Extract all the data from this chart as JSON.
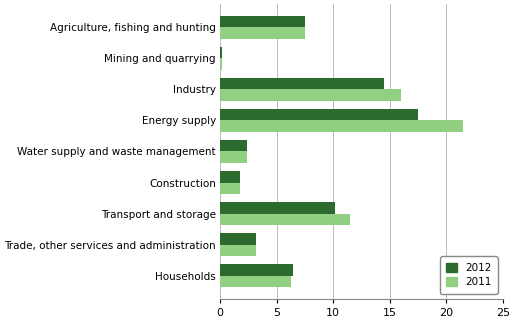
{
  "categories": [
    "Households",
    "Trade, other services and administration",
    "Transport and storage",
    "Construction",
    "Water supply and waste management",
    "Energy supply",
    "Industry",
    "Mining and quarrying",
    "Agriculture, fishing and hunting"
  ],
  "values_2012": [
    6.5,
    3.2,
    10.2,
    1.8,
    2.4,
    17.5,
    14.5,
    0.15,
    7.5
  ],
  "values_2011": [
    6.3,
    3.2,
    11.5,
    1.8,
    2.4,
    21.5,
    16.0,
    0.15,
    7.5
  ],
  "color_2012": "#2d6a2d",
  "color_2011": "#90d080",
  "bar_height": 0.38,
  "xlim": [
    0,
    25
  ],
  "xticks": [
    0,
    5,
    10,
    15,
    20,
    25
  ],
  "legend_labels": [
    "2012",
    "2011"
  ],
  "background_color": "#ffffff",
  "grid_color": "#bbbbbb",
  "label_fontsize": 7.5,
  "tick_fontsize": 8.0
}
